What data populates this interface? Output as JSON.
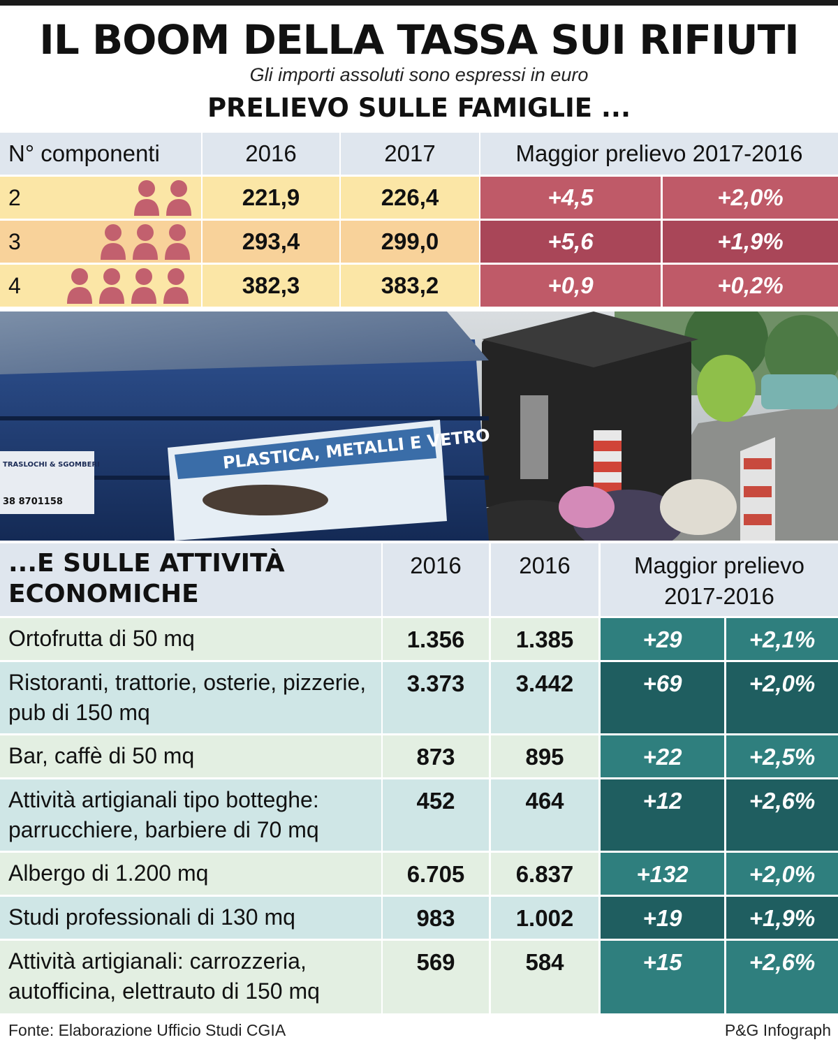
{
  "title": "IL BOOM DELLA TASSA SUI RIFIUTI",
  "subtitle": "Gli importi assoluti sono espressi in euro",
  "families_title": "PRELIEVO SULLE FAMIGLIE ...",
  "families_headers": {
    "components": "N° componenti",
    "y2016": "2016",
    "y2017": "2017",
    "delta": "Maggior prelievo 2017-2016"
  },
  "families_rows": [
    {
      "components": "2",
      "persons": 2,
      "v2016": "221,9",
      "v2017": "226,4",
      "abs": "+4,5",
      "pct": "+2,0%"
    },
    {
      "components": "3",
      "persons": 3,
      "v2016": "293,4",
      "v2017": "299,0",
      "abs": "+5,6",
      "pct": "+1,9%"
    },
    {
      "components": "4",
      "persons": 4,
      "v2016": "382,3",
      "v2017": "383,2",
      "abs": "+0,9",
      "pct": "+0,2%"
    }
  ],
  "photo_text": {
    "label1": "PLASTICA, METALLI E VETRO",
    "label2": "TRASLOCHI & SGOMBERI",
    "phone": "38 8701158"
  },
  "business_title": "...E SULLE ATTIVITÀ ECONOMICHE",
  "business_headers": {
    "col1": "2016",
    "col2": "2016",
    "delta": "Maggior prelievo 2017-2016"
  },
  "business_rows": [
    {
      "label": "Ortofrutta di 50 mq",
      "v2016": "1.356",
      "v2017": "1.385",
      "abs": "+29",
      "pct": "+2,1%"
    },
    {
      "label": "Ristoranti, trattorie, osterie, pizzerie, pub di 150 mq",
      "v2016": "3.373",
      "v2017": "3.442",
      "abs": "+69",
      "pct": "+2,0%"
    },
    {
      "label": "Bar, caffè di 50 mq",
      "v2016": "873",
      "v2017": "895",
      "abs": "+22",
      "pct": "+2,5%"
    },
    {
      "label": "Attività artigianali tipo botteghe: parrucchiere, barbiere di 70 mq",
      "v2016": "452",
      "v2017": "464",
      "abs": "+12",
      "pct": "+2,6%"
    },
    {
      "label": "Albergo di 1.200 mq",
      "v2016": "6.705",
      "v2017": "6.837",
      "abs": "+132",
      "pct": "+2,0%"
    },
    {
      "label": "Studi professionali di 130 mq",
      "v2016": "983",
      "v2017": "1.002",
      "abs": "+19",
      "pct": "+1,9%"
    },
    {
      "label": "Attività artigianali: carrozzeria, autofficina, elettrauto di 150 mq",
      "v2016": "569",
      "v2017": "584",
      "abs": "+15",
      "pct": "+2,6%"
    }
  ],
  "source": "Fonte: Elaborazione Ufficio Studi CGIA",
  "credit": "P&G Infograph",
  "colors": {
    "header_bg": "#dfe6ee",
    "family_row_light": "#fbe6a6",
    "family_row_mid": "#f8d29a",
    "family_delta": "#bf5a68",
    "family_delta_dark": "#a94658",
    "person_icon": "#c2606e",
    "biz_row_light": "#e3efe2",
    "biz_row_alt": "#cfe6e6",
    "biz_delta_light": "#2f7f7e",
    "biz_delta_dark": "#1f5e60"
  },
  "chart_data": [
    {
      "type": "table",
      "title": "PRELIEVO SULLE FAMIGLIE ...",
      "columns": [
        "N° componenti",
        "2016",
        "2017",
        "Maggior prelievo 2017-2016",
        "Maggior prelievo 2017-2016 (%)"
      ],
      "rows": [
        [
          "2",
          221.9,
          226.4,
          4.5,
          2.0
        ],
        [
          "3",
          293.4,
          299.0,
          5.6,
          1.9
        ],
        [
          "4",
          382.3,
          383.2,
          0.9,
          0.2
        ]
      ]
    },
    {
      "type": "table",
      "title": "...E SULLE ATTIVITÀ ECONOMICHE",
      "columns": [
        "",
        "2016",
        "2016",
        "Maggior prelievo 2017-2016",
        "Maggior prelievo 2017-2016 (%)"
      ],
      "rows": [
        [
          "Ortofrutta di 50 mq",
          1356,
          1385,
          29,
          2.1
        ],
        [
          "Ristoranti, trattorie, osterie, pizzerie, pub di 150 mq",
          3373,
          3442,
          69,
          2.0
        ],
        [
          "Bar, caffè di 50 mq",
          873,
          895,
          22,
          2.5
        ],
        [
          "Attività artigianali tipo botteghe: parrucchiere, barbiere di 70 mq",
          452,
          464,
          12,
          2.6
        ],
        [
          "Albergo di 1.200 mq",
          6705,
          6837,
          132,
          2.0
        ],
        [
          "Studi professionali di 130 mq",
          983,
          1002,
          19,
          1.9
        ],
        [
          "Attività artigianali: carrozzeria, autofficina, elettrauto di 150 mq",
          569,
          584,
          15,
          2.6
        ]
      ]
    }
  ]
}
